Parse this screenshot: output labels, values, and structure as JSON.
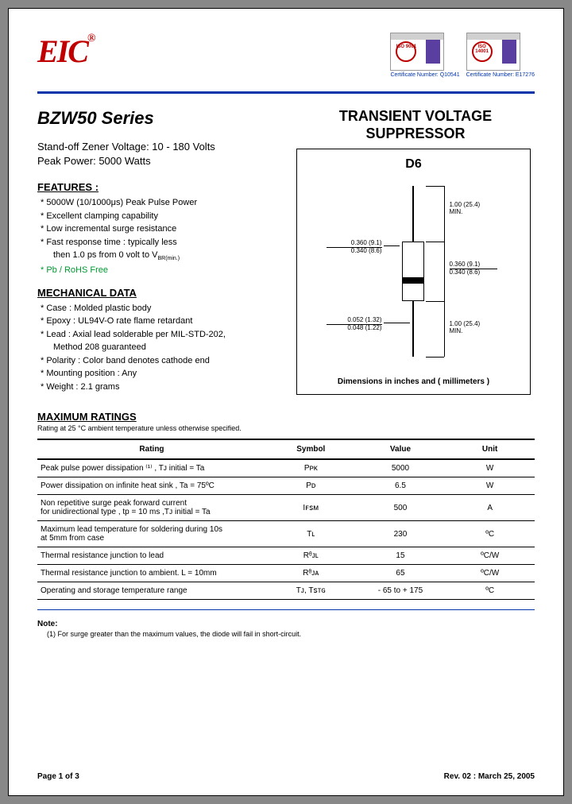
{
  "logo_text": "EIC",
  "logo_reg": "®",
  "cert1_iso": "ISO 9001",
  "cert1_text": "Certificate Number: Q10541",
  "cert2_iso": "ISO 14001",
  "cert2_text": "Certificate Number: E17276",
  "series_title": "BZW50 Series",
  "spec_line1": "Stand-off Zener Voltage: 10 - 180 Volts",
  "spec_line2": "Peak Power: 5000 Watts",
  "features_head": "FEATURES :",
  "feature1": "* 5000W (10/1000μs) Peak Pulse Power",
  "feature2": "* Excellent clamping capability",
  "feature3": "* Low incremental surge resistance",
  "feature4a": "* Fast response time : typically less",
  "feature4b": "  then 1.0 ps from 0 volt to V",
  "feature4b_sub": "BR(min.)",
  "feature5": "* Pb / RoHS Free",
  "mech_head": "MECHANICAL DATA",
  "mech1": "*  Case : Molded plastic body",
  "mech2": "*  Epoxy : UL94V-O rate flame retardant",
  "mech3a": "*  Lead : Axial lead solderable per MIL-STD-202,",
  "mech3b": "           Method 208 guaranteed",
  "mech4": "*  Polarity : Color band denotes cathode end",
  "mech5": "*  Mounting  position : Any",
  "mech6": "*  Weight :    2.1  grams",
  "product_title1": "TRANSIENT VOLTAGE",
  "product_title2": "SUPPRESSOR",
  "package_name": "D6",
  "dim_body_w1": "0.360 (9.1)",
  "dim_body_w2": "0.340 (8.6)",
  "dim_lead_len1": "1.00 (25.4)",
  "dim_lead_len2": "MIN.",
  "dim_body_h1": "0.360 (9.1)",
  "dim_body_h2": "0.340 (8.6)",
  "dim_lead_d1": "0.052 (1.32)",
  "dim_lead_d2": "0.048 (1.22)",
  "dim_caption": "Dimensions in inches and ( millimeters )",
  "ratings_head": "MAXIMUM RATINGS",
  "ratings_sub": "Rating at 25 °C ambient temperature unless otherwise specified.",
  "th_rating": "Rating",
  "th_symbol": "Symbol",
  "th_value": "Value",
  "th_unit": "Unit",
  "rows": [
    {
      "rating": "Peak pulse power dissipation ⁽¹⁾ , Tᴊ initial = Ta",
      "symbol": "Pᴘᴋ",
      "value": "5000",
      "unit": "W"
    },
    {
      "rating": "Power dissipation on infinite heat sink , Ta = 75ºC",
      "symbol": "Pᴅ",
      "value": "6.5",
      "unit": "W"
    },
    {
      "rating": "Non repetitive surge peak forward current\nfor unidirectional type , tp = 10 ms ,Tᴊ initial = Ta",
      "symbol": "Iꜰꜱᴍ",
      "value": "500",
      "unit": "A"
    },
    {
      "rating": "Maximum lead temperature for soldering during 10s\nat 5mm from case",
      "symbol": "Tʟ",
      "value": "230",
      "unit": "ºC"
    },
    {
      "rating": "Thermal resistance junction to lead",
      "symbol": "Rᶿᴊʟ",
      "value": "15",
      "unit": "ºC/W"
    },
    {
      "rating": "Thermal resistance junction to ambient. L = 10mm",
      "symbol": "Rᶿᴊᴀ",
      "value": "65",
      "unit": "ºC/W"
    },
    {
      "rating": "Operating and storage temperature range",
      "symbol": "Tᴊ, Tꜱᴛɢ",
      "value": "- 65 to + 175",
      "unit": "ºC"
    }
  ],
  "note_head": "Note:",
  "note_body": "(1) For surge greater than the maximum values, the diode will fail in short-circuit.",
  "footer_left": "Page 1 of 3",
  "footer_right": "Rev. 02 : March 25, 2005"
}
